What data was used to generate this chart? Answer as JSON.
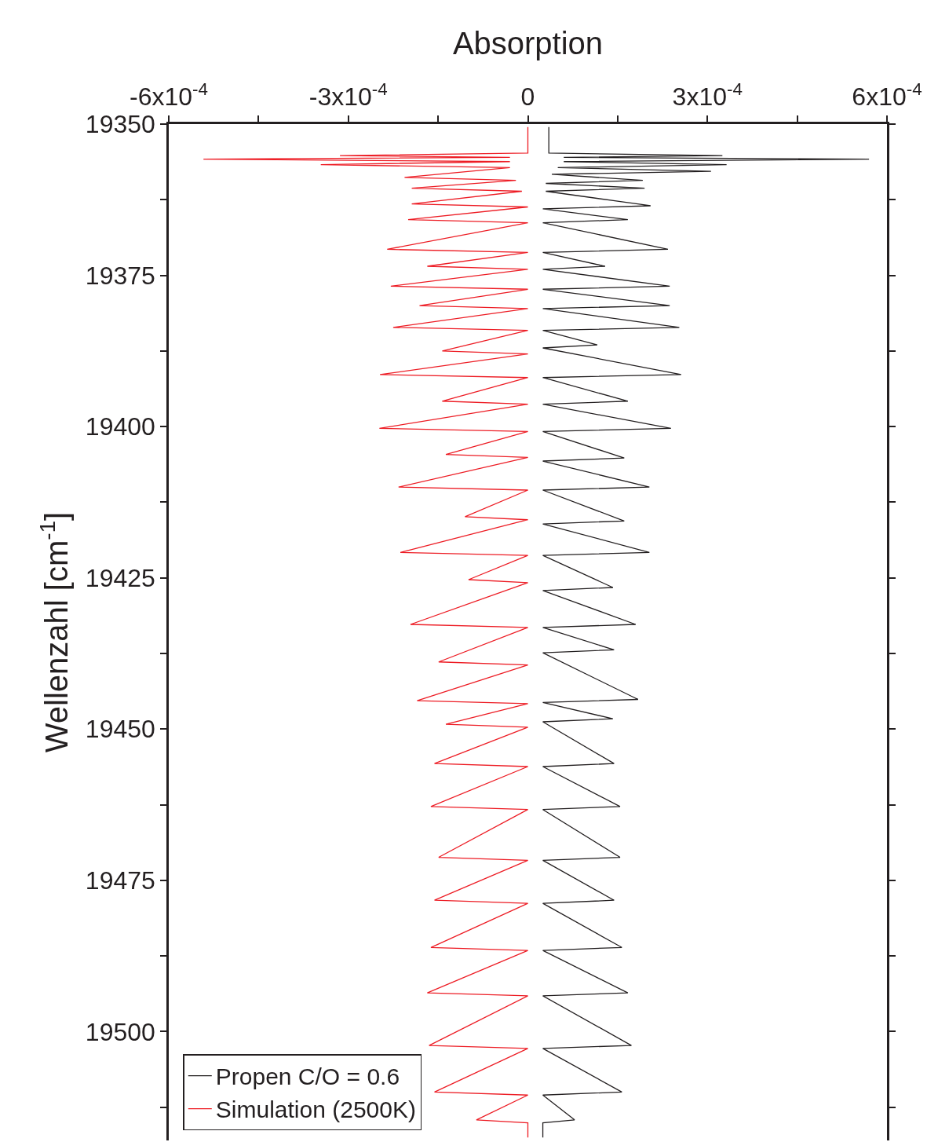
{
  "chart_data": {
    "type": "line",
    "xlabel": "Absorption",
    "ylabel": "Wellenzahl [cm$^{-1}$]",
    "xlim": [
      -0.0006,
      0.0006
    ],
    "ylim": [
      19518,
      19350
    ],
    "xticks": [
      {
        "value": -0.0006,
        "label": "-6x10$^{-4}$"
      },
      {
        "value": -0.00045,
        "label": null
      },
      {
        "value": -0.0003,
        "label": "-3x10$^{-4}$"
      },
      {
        "value": -0.00015,
        "label": null
      },
      0,
      {
        "value": 0.00015,
        "label": null
      },
      {
        "value": 0.0003,
        "label": "3x10$^{-4}$"
      },
      {
        "value": 0.00045,
        "label": null
      },
      {
        "value": 0.0006,
        "label": "6x10$^{-4}$"
      }
    ],
    "yticks": [
      19350,
      {
        "value": 19362.5,
        "label": null
      },
      19375,
      {
        "value": 19387.5,
        "label": null
      },
      19400,
      {
        "value": 19412.5,
        "label": null
      },
      19425,
      {
        "value": 19437.5,
        "label": null
      },
      19450,
      {
        "value": 19462.5,
        "label": null
      },
      19475,
      {
        "value": 19487.5,
        "label": null
      },
      19500,
      {
        "value": 19512.5,
        "label": null
      }
    ],
    "legend": "bottom left",
    "marker": "none",
    "line_style": "solid",
    "series": [
      {
        "name": "Propen C/O = 0.6",
        "color": "#231f20",
        "x": [
          3.5e-05,
          3.5e-05,
          0.000325,
          6e-05,
          0.00057,
          6e-05,
          0.000332,
          5e-05,
          0.000306,
          4e-05,
          0.000192,
          3e-05,
          0.000195,
          3e-05,
          0.000205,
          2.5e-05,
          0.000167,
          2.5e-05,
          0.000234,
          2.5e-05,
          0.000129,
          2.5e-05,
          0.000237,
          2.5e-05,
          0.000237,
          2.5e-05,
          0.000253,
          2.5e-05,
          0.000116,
          2.5e-05,
          0.000256,
          2.5e-05,
          0.000167,
          2.5e-05,
          0.000239,
          2.5e-05,
          0.000161,
          2.5e-05,
          0.000203,
          2.5e-05,
          0.000161,
          2.5e-05,
          0.000203,
          2.5e-05,
          0.000142,
          2.5e-05,
          0.00018,
          2.5e-05,
          0.000144,
          2.5e-05,
          0.000184,
          2.5e-05,
          0.000142,
          2.5e-05,
          0.000144,
          2.5e-05,
          0.000154,
          2.5e-05,
          0.000154,
          2.5e-05,
          0.000144,
          2.5e-05,
          0.000157,
          2.5e-05,
          0.000167,
          2.5e-05,
          0.000173,
          2.5e-05,
          0.000157,
          2.5e-05,
          7.8e-05,
          2.5e-05,
          2.5e-05
        ],
        "values": [
          19350.5,
          19354.8,
          19355.2,
          19355.5,
          19355.8,
          19356.2,
          19356.7,
          19357.2,
          19357.8,
          19358.3,
          19359.3,
          19359.8,
          19360.6,
          19361.1,
          19363.5,
          19364.0,
          19365.8,
          19366.3,
          19370.7,
          19371.2,
          19373.5,
          19374.0,
          19376.8,
          19377.3,
          19380.0,
          19380.5,
          19383.6,
          19384.1,
          19386.5,
          19387.0,
          19391.4,
          19391.9,
          19395.8,
          19396.3,
          19400.3,
          19400.8,
          19405.2,
          19405.7,
          19410.0,
          19410.5,
          19415.6,
          19416.1,
          19420.8,
          19421.3,
          19426.6,
          19427.1,
          19432.7,
          19433.2,
          19436.9,
          19437.4,
          19445.1,
          19445.6,
          19448.3,
          19448.8,
          19455.7,
          19456.2,
          19462.8,
          19463.3,
          19471.2,
          19471.7,
          19478.3,
          19478.8,
          19486.1,
          19486.6,
          19493.6,
          19494.1,
          19502.3,
          19502.8,
          19510.0,
          19510.5,
          19514.6,
          19515.1,
          19517.5
        ]
      },
      {
        "name": "Simulation (2500K)",
        "color": "#ed1c24",
        "x": [
          0,
          0,
          -0.000314,
          -3e-05,
          -0.000542,
          -3e-05,
          -0.000346,
          -3e-05,
          -0.000206,
          -2e-05,
          -0.000194,
          -1e-05,
          -0.000194,
          0,
          -0.0002,
          0,
          -0.000235,
          0,
          -0.000168,
          0,
          -0.000229,
          0,
          -0.000181,
          0,
          -0.000225,
          0,
          -0.000143,
          0,
          -0.000247,
          0,
          -0.000143,
          0,
          -0.000248,
          0,
          -0.000137,
          0,
          -0.000216,
          0,
          -0.000105,
          0,
          -0.000213,
          0,
          -9.9e-05,
          0,
          -0.000196,
          0,
          -0.000149,
          0,
          -0.000185,
          0,
          -0.000137,
          0,
          -0.000156,
          0,
          -0.000162,
          0,
          -0.000149,
          0,
          -0.000156,
          0,
          -0.000162,
          0,
          -0.000168,
          0,
          -0.000165,
          0,
          -0.000156,
          0,
          -8.6e-05,
          0,
          0
        ],
        "values": [
          19350.5,
          19354.8,
          19355.2,
          19355.5,
          19355.8,
          19356.2,
          19356.7,
          19357.2,
          19358.8,
          19359.3,
          19360.6,
          19361.1,
          19363.2,
          19363.7,
          19365.8,
          19366.3,
          19370.7,
          19371.2,
          19373.5,
          19374.0,
          19376.8,
          19377.3,
          19380.0,
          19380.5,
          19383.6,
          19384.1,
          19387.5,
          19388.0,
          19391.4,
          19391.9,
          19395.8,
          19396.3,
          19400.3,
          19400.8,
          19404.6,
          19405.1,
          19410.0,
          19410.5,
          19414.9,
          19415.4,
          19420.8,
          19421.3,
          19425.3,
          19425.8,
          19432.7,
          19433.2,
          19438.9,
          19439.4,
          19445.3,
          19445.8,
          19449.2,
          19449.7,
          19455.7,
          19456.2,
          19462.8,
          19463.3,
          19471.2,
          19471.7,
          19478.3,
          19478.8,
          19486.1,
          19486.6,
          19493.6,
          19494.1,
          19502.3,
          19502.8,
          19510.0,
          19510.5,
          19514.6,
          19515.1,
          19517.5
        ]
      }
    ]
  }
}
